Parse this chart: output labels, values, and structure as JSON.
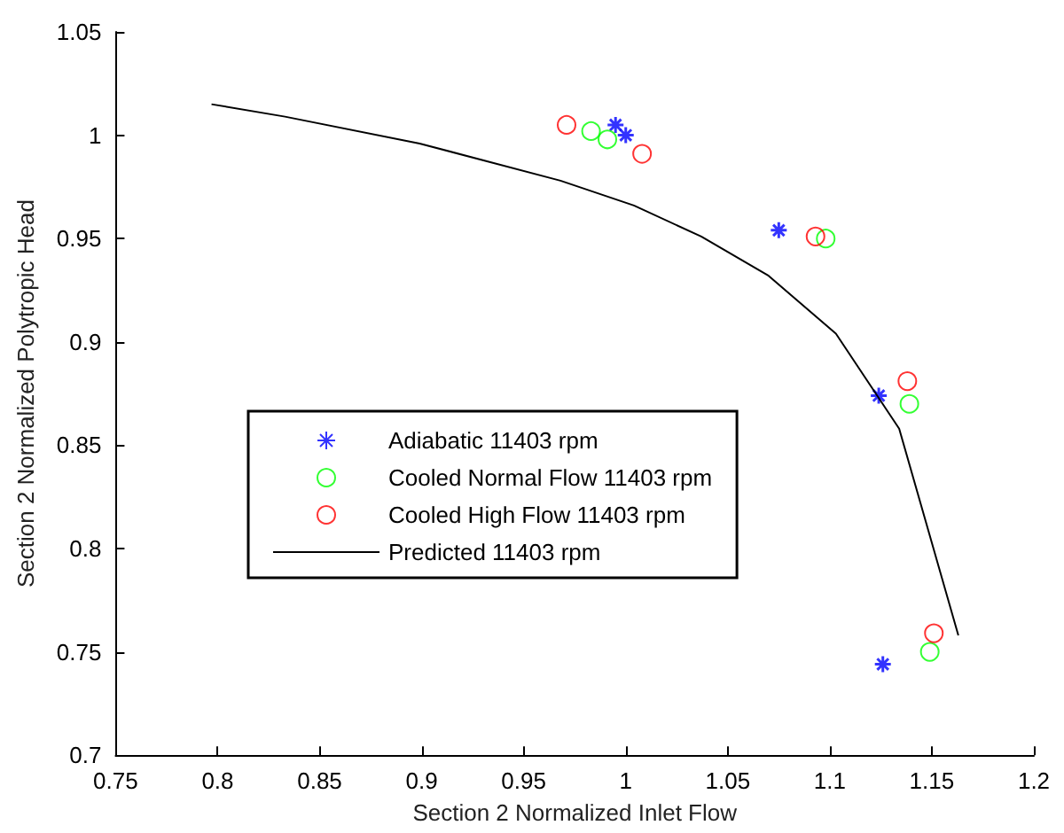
{
  "chart_data": {
    "type": "scatter",
    "xlabel": "Section 2 Normalized Inlet Flow",
    "ylabel": "Section 2 Normalized Polytropic Head",
    "xlim": [
      0.75,
      1.2
    ],
    "xticks": [
      0.75,
      0.8,
      0.85,
      0.9,
      0.95,
      1,
      1.05,
      1.1,
      1.15,
      1.2
    ],
    "ylim": [
      0.7,
      1.05
    ],
    "yticks": [
      0.7,
      0.75,
      0.8,
      0.85,
      0.9,
      0.95,
      1,
      1.05
    ],
    "grid": false,
    "legend": "left",
    "series": [
      {
        "name": "Adiabatic 11403 rpm",
        "color": "#0000ff",
        "marker": "cross",
        "x": [
          0.995,
          1.0,
          1.075,
          1.124,
          1.126
        ],
        "values": [
          1.005,
          1.0,
          0.954,
          0.874,
          0.744
        ]
      },
      {
        "name": "Cooled Normal Flow 11403 rpm",
        "color": "#00ff00",
        "marker": "circle",
        "x": [
          0.983,
          0.991,
          1.098,
          1.139,
          1.149
        ],
        "values": [
          1.002,
          0.998,
          0.95,
          0.87,
          0.75
        ]
      },
      {
        "name": "Cooled High Flow 11403 rpm",
        "color": "#ff0000",
        "marker": "circle",
        "x": [
          0.971,
          1.008,
          1.093,
          1.138,
          1.151
        ],
        "values": [
          1.005,
          0.991,
          0.951,
          0.881,
          0.759
        ]
      },
      {
        "name": "Predicted 11403 rpm",
        "color": "#000000",
        "type": "line",
        "marker": "none",
        "line_style": "solid",
        "x": [
          0.797,
          0.833,
          0.899,
          0.968,
          1.004,
          1.037,
          1.07,
          1.103,
          1.134,
          1.163
        ],
        "values": [
          1.015,
          1.009,
          0.996,
          0.978,
          0.966,
          0.951,
          0.932,
          0.904,
          0.858,
          0.758
        ]
      }
    ]
  }
}
